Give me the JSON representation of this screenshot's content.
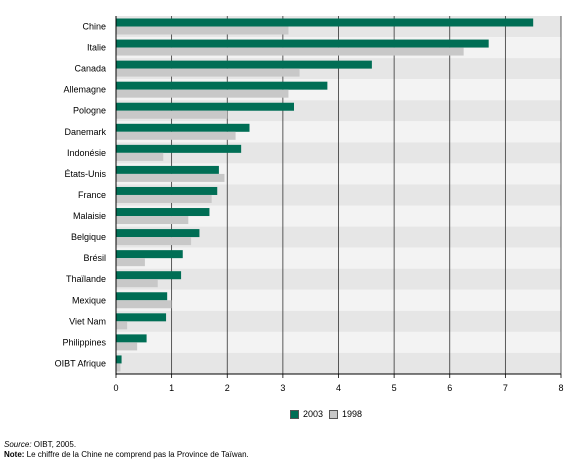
{
  "chart_data": {
    "type": "bar",
    "orientation": "horizontal",
    "categories": [
      "Chine",
      "Italie",
      "Canada",
      "Allemagne",
      "Pologne",
      "Danemark",
      "Indonésie",
      "États-Unis",
      "France",
      "Malaisie",
      "Belgique",
      "Brésil",
      "Thaïlande",
      "Mexique",
      "Viet Nam",
      "Philippines",
      "OIBT Afrique"
    ],
    "series": [
      {
        "name": "2003",
        "color": "#006e55",
        "values": [
          7.5,
          6.7,
          4.6,
          3.8,
          3.2,
          2.4,
          2.25,
          1.85,
          1.82,
          1.68,
          1.5,
          1.2,
          1.17,
          0.92,
          0.9,
          0.55,
          0.1
        ]
      },
      {
        "name": "1998",
        "color": "#c8c8c8",
        "values": [
          3.1,
          6.25,
          3.3,
          3.1,
          2.0,
          2.15,
          0.85,
          1.95,
          1.72,
          1.3,
          1.35,
          0.52,
          0.75,
          1.0,
          0.2,
          0.38,
          0.08
        ]
      }
    ],
    "xlim": [
      0,
      8
    ],
    "xticks": [
      "0",
      "1",
      "2",
      "3",
      "4",
      "5",
      "6",
      "7",
      "8"
    ],
    "grid": true,
    "legend": "bottom-center"
  },
  "legend": {
    "label_2003": "2003",
    "label_1998": "1998"
  },
  "notes": {
    "source_label": "Source:",
    "source_text": " OIBT, 2005.",
    "note_label": "Note:",
    "note_text": " Le chiffre de la Chine ne comprend pas la Province de Taïwan."
  }
}
